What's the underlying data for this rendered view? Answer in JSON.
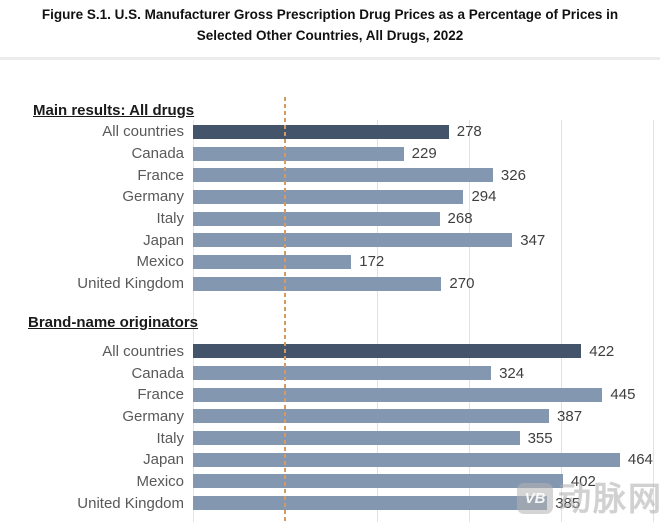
{
  "title": {
    "line1": "Figure S.1. U.S. Manufacturer Gross Prescription Drug Prices as a Percentage of Prices in",
    "line2": "Selected Other Countries, All Drugs, 2022"
  },
  "chart_data": {
    "type": "bar",
    "orientation": "horizontal",
    "unit": "percent of other-country price",
    "xlim": [
      0,
      500
    ],
    "gridlines": [
      200,
      300,
      400,
      500
    ],
    "reference_line": {
      "value": 100,
      "style": "dashed",
      "color": "#d49a62"
    },
    "grid_color": "#e1e1e1",
    "colors": {
      "highlight": "#44546a",
      "default": "#8497b0"
    },
    "categories": [
      "All countries",
      "Canada",
      "France",
      "Germany",
      "Italy",
      "Japan",
      "Mexico",
      "United Kingdom"
    ],
    "groups": [
      {
        "label": "Main results: All drugs",
        "highlight_index": 0,
        "values": [
          278,
          229,
          326,
          294,
          268,
          347,
          172,
          270
        ]
      },
      {
        "label": "Brand-name originators",
        "highlight_index": 0,
        "values": [
          422,
          324,
          445,
          387,
          355,
          464,
          402,
          385
        ]
      }
    ]
  },
  "watermark": {
    "logo_text": "VB",
    "text": "动脉网"
  }
}
